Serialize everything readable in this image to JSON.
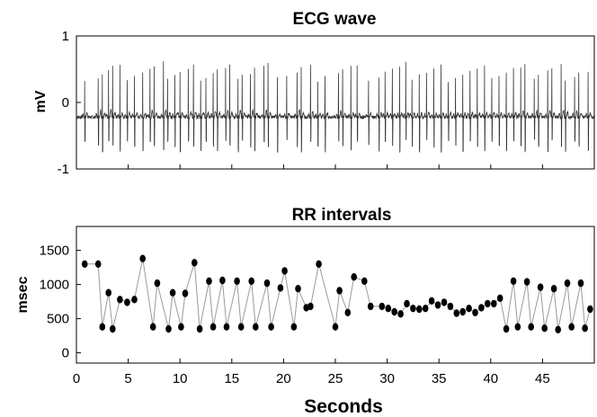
{
  "chart_data": [
    {
      "type": "line",
      "title": "ECG wave",
      "xlabel": "",
      "ylabel": "mV",
      "xlim": [
        0,
        50
      ],
      "ylim": [
        -1,
        1
      ],
      "yticks": [
        "1",
        "0",
        "-1"
      ],
      "yticks_values": [
        1,
        0,
        -1
      ],
      "grid": false,
      "baseline_mv": -0.22,
      "beat_times": [
        0.8,
        2.1,
        2.5,
        3.1,
        3.5,
        4.2,
        4.9,
        5.6,
        6.4,
        7.1,
        7.5,
        8.4,
        8.8,
        9.5,
        10.0,
        10.8,
        11.3,
        12.0,
        12.5,
        13.2,
        13.6,
        14.4,
        14.8,
        15.6,
        16.0,
        16.8,
        17.2,
        18.1,
        18.5,
        19.4,
        20.3,
        21.3,
        21.7,
        22.6,
        23.3,
        24.0,
        25.3,
        25.7,
        26.5,
        27.1,
        28.2,
        29.2,
        29.8,
        30.5,
        31.2,
        31.8,
        32.4,
        33.1,
        33.8,
        34.5,
        35.2,
        35.9,
        36.6,
        37.3,
        38.0,
        38.7,
        39.4,
        40.1,
        40.8,
        41.5,
        42.2,
        42.9,
        43.3,
        44.2,
        44.6,
        45.5,
        45.9,
        46.8,
        47.2,
        48.1,
        48.5,
        49.4
      ]
    },
    {
      "type": "scatter",
      "title": "RR intervals",
      "xlabel": "Seconds",
      "ylabel": "msec",
      "xlim": [
        0,
        50
      ],
      "ylim": [
        -150,
        1850
      ],
      "xticks": [
        "0",
        "5",
        "10",
        "15",
        "20",
        "25",
        "30",
        "35",
        "40",
        "45"
      ],
      "xticks_values": [
        0,
        5,
        10,
        15,
        20,
        25,
        30,
        35,
        40,
        45
      ],
      "yticks": [
        "1500",
        "1000",
        "500",
        "0"
      ],
      "yticks_values": [
        1500,
        1000,
        500,
        0
      ],
      "grid": false,
      "x": [
        0.8,
        2.1,
        2.5,
        3.1,
        3.5,
        4.2,
        4.9,
        5.6,
        6.4,
        7.4,
        7.8,
        8.9,
        9.3,
        10.1,
        10.5,
        11.4,
        11.9,
        12.8,
        13.2,
        14.1,
        14.5,
        15.5,
        15.9,
        16.9,
        17.3,
        18.4,
        18.8,
        19.7,
        20.1,
        21.0,
        21.4,
        22.2,
        22.6,
        23.4,
        25.0,
        25.4,
        26.2,
        26.8,
        27.8,
        28.4,
        29.5,
        30.1,
        30.7,
        31.3,
        31.9,
        32.5,
        33.1,
        33.7,
        34.3,
        34.9,
        35.5,
        36.1,
        36.7,
        37.3,
        37.9,
        38.5,
        39.1,
        39.7,
        40.3,
        40.9,
        41.5,
        42.2,
        42.6,
        43.5,
        43.9,
        44.8,
        45.2,
        46.1,
        46.5,
        47.4,
        47.8,
        48.7,
        49.1,
        49.6
      ],
      "y": [
        1300,
        1300,
        380,
        880,
        350,
        780,
        740,
        780,
        1380,
        380,
        1020,
        350,
        880,
        380,
        870,
        1320,
        350,
        1050,
        380,
        1060,
        380,
        1050,
        380,
        1050,
        380,
        1020,
        380,
        950,
        1200,
        380,
        940,
        660,
        680,
        1300,
        380,
        910,
        590,
        1110,
        1050,
        680,
        680,
        650,
        600,
        570,
        720,
        650,
        640,
        650,
        760,
        700,
        740,
        680,
        580,
        600,
        650,
        590,
        660,
        720,
        720,
        800,
        350,
        1050,
        380,
        1040,
        380,
        960,
        360,
        940,
        340,
        1020,
        380,
        1020,
        360,
        640
      ]
    }
  ]
}
